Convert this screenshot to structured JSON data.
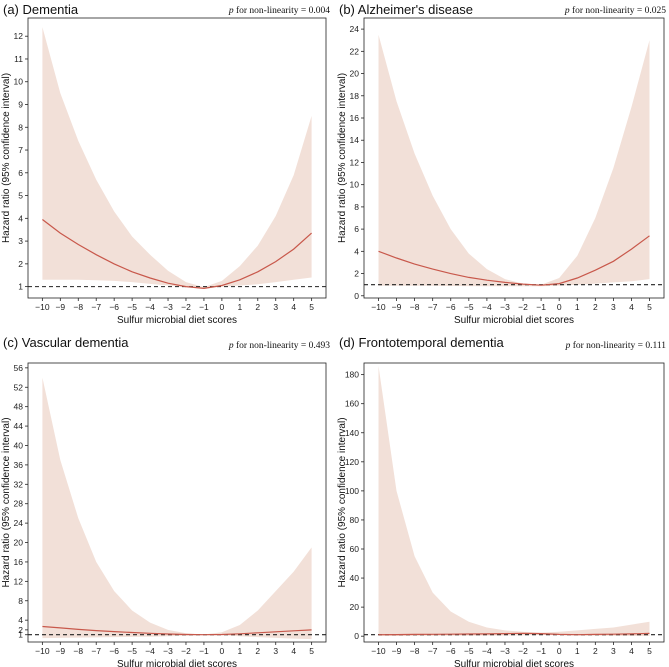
{
  "figure": {
    "ci_color": "#f2e0d8",
    "line_color": "#c8584b",
    "ref_color": "#222222"
  },
  "chart_data": [
    {
      "type": "line",
      "title": "(a) Dementia",
      "p_label": "p",
      "p_text": "for non-linearity = 0.004",
      "xlabel": "Sulfur microbial diet scores",
      "ylabel": "Hazard ratio (95% confidence interval)",
      "xlim": [
        -10.8,
        5.8
      ],
      "ylim": [
        0.5,
        12.8
      ],
      "xticks": [
        -10,
        -9,
        -8,
        -7,
        -6,
        -5,
        -4,
        -3,
        -2,
        -1,
        0,
        1,
        2,
        3,
        4,
        5
      ],
      "yticks": [
        1,
        2,
        3,
        4,
        5,
        6,
        7,
        8,
        9,
        10,
        11,
        12
      ],
      "reference": 1,
      "grid": false,
      "x": [
        -10,
        -9,
        -8,
        -7,
        -6,
        -5,
        -4,
        -3,
        -2,
        -1,
        0,
        1,
        2,
        3,
        4,
        5
      ],
      "hr": [
        3.95,
        3.35,
        2.85,
        2.4,
        2.0,
        1.65,
        1.38,
        1.15,
        1.0,
        0.92,
        1.05,
        1.3,
        1.65,
        2.1,
        2.65,
        3.35
      ],
      "lower": [
        1.3,
        1.3,
        1.3,
        1.28,
        1.25,
        1.2,
        1.12,
        1.05,
        0.98,
        0.9,
        1.0,
        1.05,
        1.1,
        1.2,
        1.3,
        1.4
      ],
      "upper": [
        12.4,
        9.5,
        7.4,
        5.7,
        4.3,
        3.2,
        2.4,
        1.7,
        1.2,
        0.98,
        1.25,
        1.9,
        2.8,
        4.1,
        5.9,
        8.5
      ]
    },
    {
      "type": "line",
      "title": "(b) Alzheimer's disease",
      "p_label": "p",
      "p_text": "for non-linearity = 0.025",
      "xlabel": "Sulfur microbial diet scores",
      "ylabel": "Hazard ratio (95% confidence interval)",
      "xlim": [
        -10.8,
        5.8
      ],
      "ylim": [
        -0.2,
        25
      ],
      "xticks": [
        -10,
        -9,
        -8,
        -7,
        -6,
        -5,
        -4,
        -3,
        -2,
        -1,
        0,
        1,
        2,
        3,
        4,
        5
      ],
      "yticks": [
        0,
        2,
        4,
        6,
        8,
        10,
        12,
        14,
        16,
        18,
        20,
        22,
        24
      ],
      "reference": 1,
      "grid": false,
      "x": [
        -10,
        -9,
        -8,
        -7,
        -6,
        -5,
        -4,
        -3,
        -2,
        -1,
        0,
        1,
        2,
        3,
        4,
        5
      ],
      "hr": [
        4.0,
        3.4,
        2.85,
        2.4,
        2.0,
        1.65,
        1.4,
        1.2,
        1.05,
        0.95,
        1.1,
        1.6,
        2.3,
        3.1,
        4.2,
        5.4
      ],
      "lower": [
        0.9,
        0.9,
        0.9,
        0.9,
        0.88,
        0.87,
        0.86,
        0.85,
        0.85,
        0.85,
        0.9,
        1.0,
        1.1,
        1.2,
        1.3,
        1.5
      ],
      "upper": [
        23.5,
        17.5,
        12.8,
        9.0,
        6.0,
        3.8,
        2.4,
        1.5,
        1.1,
        1.0,
        1.6,
        3.6,
        7.0,
        11.5,
        17.0,
        23.0
      ]
    },
    {
      "type": "line",
      "title": "(c) Vascular dementia",
      "p_label": "p",
      "p_text": "for non-linearity = 0.493",
      "xlabel": "Sulfur microbial diet scores",
      "ylabel": "Hazard ratio (95% confidence interval)",
      "xlim": [
        -10.8,
        5.8
      ],
      "ylim": [
        -0.5,
        57
      ],
      "xticks": [
        -10,
        -9,
        -8,
        -7,
        -6,
        -5,
        -4,
        -3,
        -2,
        -1,
        0,
        1,
        2,
        3,
        4,
        5
      ],
      "yticks": [
        1,
        2,
        4,
        8,
        12,
        16,
        20,
        24,
        28,
        32,
        36,
        40,
        44,
        48,
        52,
        56
      ],
      "reference": 1,
      "grid": false,
      "x": [
        -10,
        -9,
        -8,
        -7,
        -6,
        -5,
        -4,
        -3,
        -2,
        -1,
        0,
        1,
        2,
        3,
        4,
        5
      ],
      "hr": [
        2.7,
        2.4,
        2.1,
        1.85,
        1.65,
        1.45,
        1.3,
        1.15,
        1.05,
        1.0,
        1.05,
        1.2,
        1.4,
        1.6,
        1.8,
        2.0
      ],
      "lower": [
        0.3,
        0.35,
        0.4,
        0.45,
        0.5,
        0.55,
        0.6,
        0.7,
        0.8,
        0.9,
        0.9,
        0.7,
        0.5,
        0.35,
        0.2,
        0.1
      ],
      "upper": [
        54,
        37,
        25,
        16,
        10,
        6,
        3.5,
        2,
        1.3,
        1.05,
        1.5,
        3,
        6,
        10,
        14,
        19
      ]
    },
    {
      "type": "line",
      "title": "(d) Frontotemporal dementia",
      "p_label": "p",
      "p_text": "for non-linearity = 0.111",
      "xlabel": "Sulfur microbial diet scores",
      "ylabel": "Hazard ratio (95% confidence interval)",
      "xlim": [
        -10.8,
        5.8
      ],
      "ylim": [
        -4,
        188
      ],
      "xticks": [
        -10,
        -9,
        -8,
        -7,
        -6,
        -5,
        -4,
        -3,
        -2,
        -1,
        0,
        1,
        2,
        3,
        4,
        5
      ],
      "yticks": [
        0,
        20,
        40,
        60,
        80,
        100,
        120,
        140,
        160,
        180
      ],
      "reference": 1,
      "grid": false,
      "x": [
        -10,
        -9,
        -8,
        -7,
        -6,
        -5,
        -4,
        -3,
        -2,
        -1,
        0,
        1,
        2,
        3,
        4,
        5
      ],
      "hr": [
        1.0,
        1.1,
        1.2,
        1.3,
        1.4,
        1.5,
        1.6,
        1.8,
        2.0,
        1.8,
        1.2,
        1.0,
        1.2,
        1.4,
        1.6,
        1.9
      ],
      "lower": [
        0.1,
        0.1,
        0.15,
        0.2,
        0.25,
        0.3,
        0.4,
        0.5,
        0.7,
        0.8,
        0.6,
        0.4,
        0.3,
        0.2,
        0.15,
        0.1
      ],
      "upper": [
        186,
        100,
        55,
        30,
        17,
        10,
        6,
        4,
        3,
        2.5,
        3,
        4,
        5,
        6,
        8,
        10
      ]
    }
  ]
}
